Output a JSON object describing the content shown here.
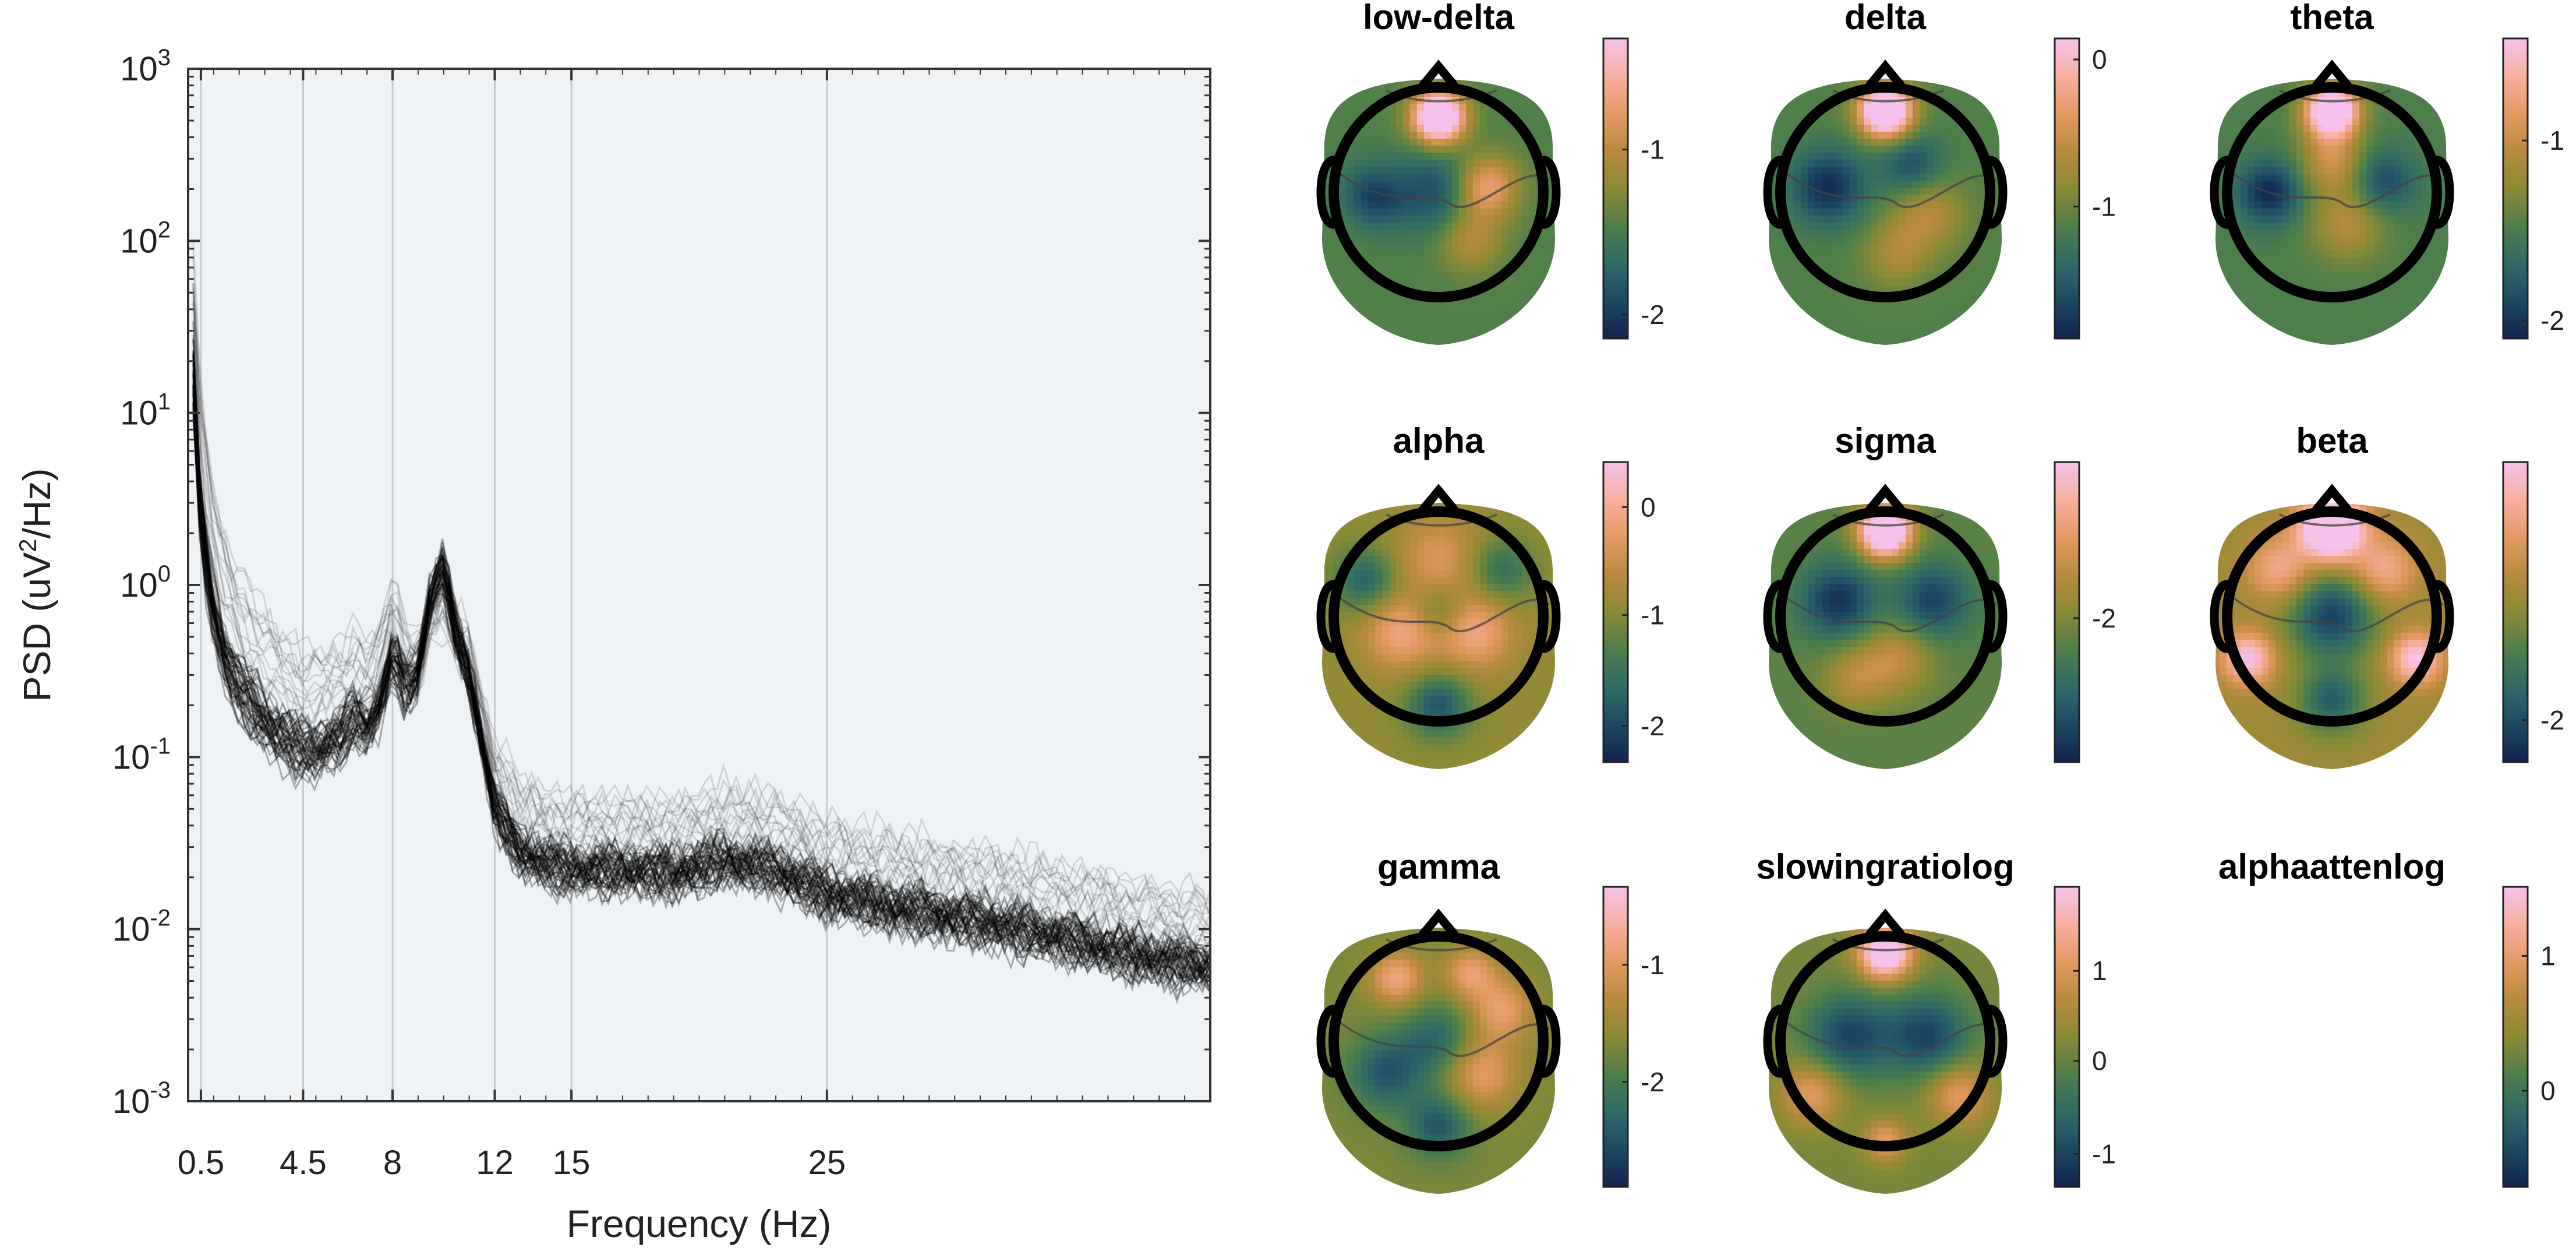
{
  "colors": {
    "plot_background": "#eef2f5",
    "grid_line": "#c8ccd0",
    "psd_trace": "#000000",
    "colormap": [
      "#12224f",
      "#1d4a63",
      "#2f6a66",
      "#4f7f4a",
      "#8a8a35",
      "#b98a40",
      "#e39a63",
      "#f6b0a0",
      "#f6c2ec"
    ],
    "head_outline": "#000000",
    "contour_line": "#444444"
  },
  "psd": {
    "type": "line",
    "xlabel": "Frequency (Hz)",
    "ylabel_pre": "PSD (uV",
    "ylabel_sup": "2",
    "ylabel_post": "/Hz)",
    "xlim": [
      0,
      40
    ],
    "ylim": [
      0.001,
      1000
    ],
    "yscale": "log",
    "xtick_values": [
      0.5,
      4.5,
      8,
      12,
      15,
      25
    ],
    "xtick_labels": [
      "0.5",
      "4.5",
      "8",
      "12",
      "15",
      "25"
    ],
    "xgrid_values": [
      0.5,
      4.5,
      8,
      12,
      15,
      25
    ],
    "ytick_values": [
      0.001,
      0.01,
      0.1,
      1,
      10,
      100,
      1000
    ],
    "ytick_base": [
      "10",
      "10",
      "10",
      "10",
      "10",
      "10",
      "10"
    ],
    "ytick_exponents": [
      "-3",
      "-2",
      "-1",
      "0",
      "1",
      "2",
      "3"
    ],
    "channel_count_approx": 60,
    "median_trace": {
      "freqs": [
        0.2,
        0.5,
        1,
        1.5,
        2,
        3,
        4,
        4.5,
        5,
        5.5,
        6,
        6.5,
        7,
        7.5,
        8,
        8.5,
        9,
        9.5,
        10,
        10.5,
        11,
        11.5,
        12,
        13,
        14,
        15,
        17,
        19,
        21,
        23,
        25,
        28,
        31,
        34,
        37,
        40
      ],
      "psd": [
        15,
        2.2,
        0.7,
        0.35,
        0.25,
        0.16,
        0.12,
        0.11,
        0.11,
        0.12,
        0.13,
        0.17,
        0.15,
        0.2,
        0.4,
        0.25,
        0.3,
        0.9,
        1.3,
        0.5,
        0.3,
        0.12,
        0.05,
        0.028,
        0.024,
        0.022,
        0.022,
        0.021,
        0.025,
        0.022,
        0.016,
        0.013,
        0.011,
        0.009,
        0.007,
        0.006
      ]
    }
  },
  "topoplots": [
    {
      "title": "low-delta",
      "cbar_ticks": [
        {
          "label": "-1",
          "frac": 0.63
        },
        {
          "label": "-2",
          "frac": 0.08
        }
      ]
    },
    {
      "title": "delta",
      "cbar_ticks": [
        {
          "label": "0",
          "frac": 0.93
        },
        {
          "label": "-1",
          "frac": 0.44
        }
      ]
    },
    {
      "title": "theta",
      "cbar_ticks": [
        {
          "label": "-1",
          "frac": 0.66
        },
        {
          "label": "-2",
          "frac": 0.06
        }
      ]
    },
    {
      "title": "alpha",
      "cbar_ticks": [
        {
          "label": "0",
          "frac": 0.85
        },
        {
          "label": "-1",
          "frac": 0.49
        },
        {
          "label": "-2",
          "frac": 0.12
        }
      ]
    },
    {
      "title": "sigma",
      "cbar_ticks": [
        {
          "label": "-2",
          "frac": 0.48
        }
      ]
    },
    {
      "title": "beta",
      "cbar_ticks": [
        {
          "label": "-2",
          "frac": 0.14
        }
      ]
    },
    {
      "title": "gamma",
      "cbar_ticks": [
        {
          "label": "-1",
          "frac": 0.74
        },
        {
          "label": "-2",
          "frac": 0.35
        }
      ]
    },
    {
      "title": "slowingratiolog",
      "cbar_ticks": [
        {
          "label": "1",
          "frac": 0.72
        },
        {
          "label": "0",
          "frac": 0.42
        },
        {
          "label": "-1",
          "frac": 0.11
        }
      ]
    },
    {
      "title": "alphaattenlog",
      "show_head": false,
      "cbar_ticks": [
        {
          "label": "1",
          "frac": 0.77
        },
        {
          "label": "0",
          "frac": 0.32
        }
      ]
    }
  ],
  "topo_maps": [
    {
      "base": 0.38,
      "hot": [
        [
          0.0,
          0.72,
          0.95,
          0.25
        ],
        [
          -0.55,
          0.1,
          0.1,
          0.25
        ],
        [
          0.3,
          -0.45,
          0.25,
          0.3
        ],
        [
          0.45,
          0.05,
          0.45,
          0.3
        ]
      ],
      "cold": [
        [
          -0.6,
          0.0,
          0.35,
          0.3
        ],
        [
          0.0,
          0.0,
          0.25,
          0.4
        ]
      ]
    },
    {
      "base": 0.38,
      "hot": [
        [
          0.0,
          0.78,
          1.0,
          0.25
        ],
        [
          0.4,
          -0.2,
          0.25,
          0.35
        ],
        [
          0.1,
          -0.6,
          0.2,
          0.3
        ]
      ],
      "cold": [
        [
          -0.55,
          0.05,
          0.35,
          0.35
        ],
        [
          0.25,
          0.25,
          0.25,
          0.3
        ]
      ]
    },
    {
      "base": 0.37,
      "hot": [
        [
          0.0,
          0.78,
          0.95,
          0.25
        ],
        [
          0.0,
          0.3,
          0.3,
          0.3
        ],
        [
          0.15,
          -0.3,
          0.25,
          0.35
        ]
      ],
      "cold": [
        [
          -0.6,
          0.0,
          0.35,
          0.3
        ],
        [
          0.5,
          0.1,
          0.25,
          0.3
        ]
      ]
    },
    {
      "base": 0.52,
      "hot": [
        [
          -0.35,
          -0.15,
          0.3,
          0.35
        ],
        [
          0.35,
          -0.15,
          0.3,
          0.35
        ],
        [
          0.0,
          0.55,
          0.2,
          0.4
        ]
      ],
      "cold": [
        [
          -0.7,
          0.35,
          0.3,
          0.3
        ],
        [
          0.6,
          0.45,
          0.25,
          0.3
        ],
        [
          0.0,
          -0.85,
          0.35,
          0.3
        ],
        [
          0.0,
          0.05,
          0.2,
          0.25
        ]
      ]
    },
    {
      "base": 0.4,
      "hot": [
        [
          0.0,
          0.82,
          0.95,
          0.25
        ],
        [
          0.1,
          -0.4,
          0.25,
          0.35
        ],
        [
          -0.3,
          -0.6,
          0.2,
          0.3
        ]
      ],
      "cold": [
        [
          -0.45,
          0.15,
          0.35,
          0.35
        ],
        [
          0.45,
          0.15,
          0.3,
          0.35
        ]
      ]
    },
    {
      "base": 0.55,
      "hot": [
        [
          0.0,
          0.85,
          0.85,
          0.3
        ],
        [
          -0.5,
          0.45,
          0.3,
          0.3
        ],
        [
          0.5,
          0.45,
          0.3,
          0.3
        ],
        [
          -0.8,
          -0.4,
          0.45,
          0.25
        ],
        [
          0.8,
          -0.4,
          0.45,
          0.25
        ]
      ],
      "cold": [
        [
          0.0,
          0.0,
          0.45,
          0.4
        ],
        [
          0.0,
          -0.8,
          0.35,
          0.3
        ]
      ]
    },
    {
      "base": 0.47,
      "hot": [
        [
          -0.4,
          0.6,
          0.35,
          0.25
        ],
        [
          0.3,
          0.65,
          0.3,
          0.25
        ],
        [
          0.6,
          0.3,
          0.3,
          0.3
        ],
        [
          0.4,
          -0.3,
          0.3,
          0.35
        ]
      ],
      "cold": [
        [
          -0.5,
          -0.3,
          0.3,
          0.35
        ],
        [
          0.0,
          0.0,
          0.25,
          0.35
        ],
        [
          0.0,
          -0.8,
          0.3,
          0.3
        ]
      ]
    },
    {
      "base": 0.46,
      "hot": [
        [
          0.0,
          0.85,
          0.75,
          0.25
        ],
        [
          -0.7,
          -0.5,
          0.3,
          0.3
        ],
        [
          0.7,
          -0.5,
          0.3,
          0.3
        ],
        [
          0.0,
          -0.95,
          0.3,
          0.2
        ]
      ],
      "cold": [
        [
          -0.35,
          0.05,
          0.35,
          0.4
        ],
        [
          0.4,
          0.05,
          0.35,
          0.4
        ]
      ]
    }
  ]
}
